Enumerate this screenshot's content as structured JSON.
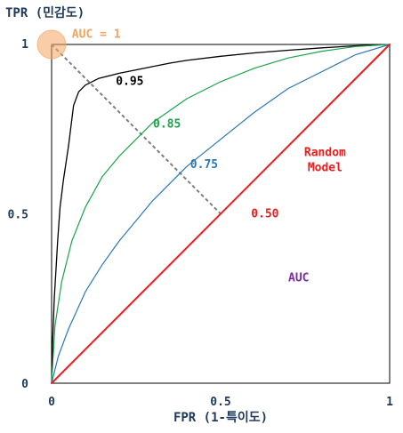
{
  "colors": {
    "axis_text": "#1f3a5a",
    "auc_095": "#000000",
    "auc_085": "#1aa34a",
    "auc_075": "#2a78b8",
    "random": "#ee1c1c",
    "auc_label": "#7a2ea6",
    "perfect": "#f4a460",
    "diagonal_guide": "#808080"
  },
  "chart_data": {
    "type": "line",
    "title": "",
    "xlabel": "FPR (1-특이도)",
    "ylabel": "TPR (민감도)",
    "xlim": [
      0,
      1
    ],
    "ylim": [
      0,
      1
    ],
    "grid": false,
    "x_ticks": [
      {
        "value": 0,
        "label": "0"
      },
      {
        "value": 0.5,
        "label": "0.5"
      },
      {
        "value": 1,
        "label": "1"
      }
    ],
    "y_ticks": [
      {
        "value": 0,
        "label": "0"
      },
      {
        "value": 0.5,
        "label": "0.5"
      },
      {
        "value": 1,
        "label": "1"
      }
    ],
    "series": [
      {
        "key": "auc_095",
        "label": "0.95",
        "x": [
          0,
          0.003,
          0.008,
          0.012,
          0.018,
          0.025,
          0.035,
          0.05,
          0.065,
          0.08,
          0.1,
          0.14,
          0.2,
          0.25,
          0.3,
          0.35,
          0.4,
          0.5,
          0.6,
          0.7,
          0.8,
          0.9,
          1.0
        ],
        "y": [
          0,
          0.12,
          0.25,
          0.32,
          0.42,
          0.52,
          0.6,
          0.7,
          0.82,
          0.86,
          0.88,
          0.9,
          0.915,
          0.925,
          0.935,
          0.945,
          0.953,
          0.965,
          0.975,
          0.983,
          0.99,
          0.996,
          1.0
        ],
        "label_at": [
          0.19,
          0.88
        ]
      },
      {
        "key": "auc_085",
        "label": "0.85",
        "x": [
          0,
          0.01,
          0.03,
          0.06,
          0.1,
          0.15,
          0.2,
          0.3,
          0.4,
          0.5,
          0.6,
          0.7,
          0.8,
          0.9,
          1.0
        ],
        "y": [
          0,
          0.17,
          0.3,
          0.42,
          0.52,
          0.61,
          0.67,
          0.77,
          0.84,
          0.89,
          0.93,
          0.96,
          0.98,
          0.994,
          1.0
        ],
        "label_at": [
          0.3,
          0.755
        ]
      },
      {
        "key": "auc_075",
        "label": "0.75",
        "x": [
          0,
          0.02,
          0.05,
          0.1,
          0.15,
          0.2,
          0.3,
          0.4,
          0.5,
          0.6,
          0.7,
          0.8,
          0.9,
          1.0
        ],
        "y": [
          0,
          0.08,
          0.16,
          0.27,
          0.35,
          0.42,
          0.54,
          0.64,
          0.72,
          0.8,
          0.87,
          0.92,
          0.97,
          1.0
        ],
        "label_at": [
          0.41,
          0.635
        ]
      },
      {
        "key": "random",
        "label": "Random\nModel",
        "x": [
          0,
          1
        ],
        "y": [
          0,
          1
        ],
        "label_at": [
          0.73,
          0.67
        ]
      }
    ],
    "annotations": [
      {
        "key": "auc_050",
        "text": "0.50",
        "x": 0.59,
        "y": 0.49
      },
      {
        "key": "auc_area",
        "text": "AUC",
        "x": 0.7,
        "y": 0.3
      },
      {
        "key": "auc_1",
        "text": "AUC = 1",
        "x": 0.06,
        "y": 1.02
      }
    ],
    "perfect_point": {
      "x": 0,
      "y": 1
    },
    "guide_line": {
      "from": [
        0,
        1
      ],
      "to": [
        0.5,
        0.5
      ]
    }
  }
}
